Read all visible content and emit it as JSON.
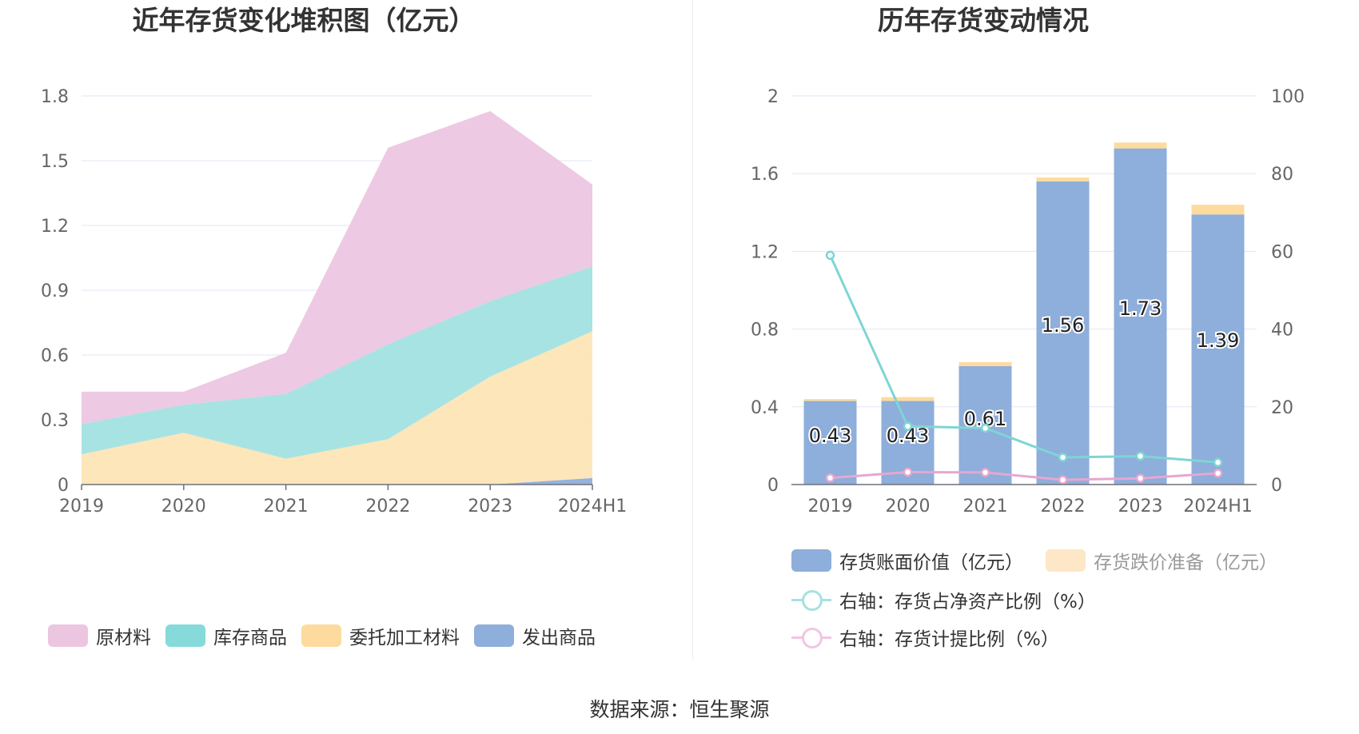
{
  "left_title": "近年存货变化堆积图（亿元）",
  "right_title": "历年存货变动情况",
  "source": "数据来源：恒生聚源",
  "colors": {
    "raw": "#ecc6e1",
    "stock": "#a3e2e2",
    "consign": "#fde5b5",
    "shipped": "#8eaedb",
    "book": "#8eaedb",
    "reserve": "#fddb9e",
    "ratio_line": "#7fd5d5",
    "provision_line": "#e6a7d0"
  },
  "chart_data": [
    {
      "type": "area",
      "stacked": true,
      "title": "近年存货变化堆积图（亿元）",
      "categories": [
        "2019",
        "2020",
        "2021",
        "2022",
        "2023",
        "2024H1"
      ],
      "y_ticks": [
        "0",
        "0.3",
        "0.6",
        "0.9",
        "1.2",
        "1.5",
        "1.8"
      ],
      "ylim": [
        0,
        1.8
      ],
      "series": [
        {
          "name": "发出商品",
          "values": [
            0,
            0,
            0,
            0,
            0,
            0.03
          ]
        },
        {
          "name": "委托加工材料",
          "values": [
            0.14,
            0.24,
            0.12,
            0.21,
            0.5,
            0.68
          ]
        },
        {
          "name": "库存商品",
          "values": [
            0.14,
            0.13,
            0.3,
            0.44,
            0.35,
            0.3
          ]
        },
        {
          "name": "原材料",
          "values": [
            0.15,
            0.06,
            0.19,
            0.91,
            0.88,
            0.38
          ]
        }
      ],
      "legend": [
        "原材料",
        "库存商品",
        "委托加工材料",
        "发出商品"
      ]
    },
    {
      "type": "bar+line",
      "title": "历年存货变动情况",
      "categories": [
        "2019",
        "2020",
        "2021",
        "2022",
        "2023",
        "2024H1"
      ],
      "y_left_ticks": [
        "0",
        "0.4",
        "0.8",
        "1.2",
        "1.6",
        "2"
      ],
      "y_right_ticks": [
        "0",
        "20",
        "40",
        "60",
        "80",
        "100"
      ],
      "ylim_left": [
        0,
        2
      ],
      "ylim_right": [
        0,
        100
      ],
      "bars": [
        {
          "name": "存货账面价值（亿元）",
          "values": [
            0.43,
            0.43,
            0.61,
            1.56,
            1.73,
            1.39
          ],
          "labels": [
            "0.43",
            "0.43",
            "0.61",
            "1.56",
            "1.73",
            "1.39"
          ]
        },
        {
          "name": "存货跌价准备（亿元）",
          "values": [
            0.01,
            0.02,
            0.02,
            0.02,
            0.03,
            0.05
          ]
        }
      ],
      "lines": [
        {
          "name": "右轴：存货占净资产比例（%）",
          "values": [
            59,
            15,
            14.5,
            7,
            7.3,
            5.7
          ]
        },
        {
          "name": "右轴：存货计提比例（%）",
          "values": [
            1.7,
            3.2,
            3.1,
            1.2,
            1.6,
            2.9
          ]
        }
      ]
    }
  ]
}
